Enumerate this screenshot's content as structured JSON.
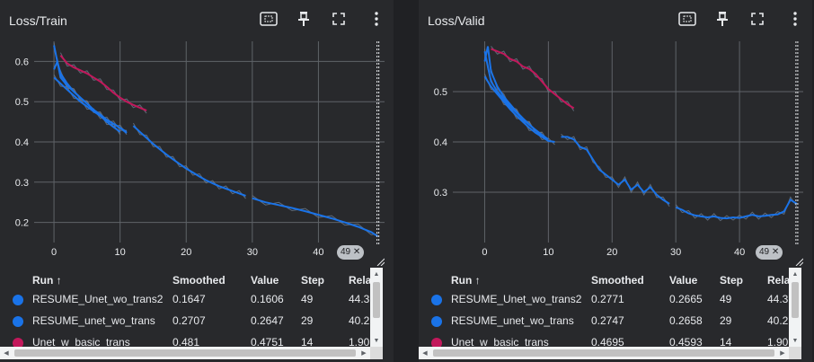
{
  "colors": {
    "background": "#28292c",
    "grid": "#5f6368",
    "text": "#e8eaed",
    "series_blue": "#1a73e8",
    "series_red": "#c2185b",
    "raw_line": "#6b7b8c"
  },
  "icons": [
    "fit-domain-icon",
    "pin-icon",
    "fullscreen-icon",
    "more-vert-icon",
    "resize-grip-icon"
  ],
  "cards": [
    {
      "title": "Loss/Train",
      "step_chip": "49",
      "table": {
        "columns": [
          "Run ↑",
          "Smoothed",
          "Value",
          "Step",
          "Rela"
        ],
        "rows": [
          {
            "run": "RESUME_Unet_wo_trans2",
            "smoothed": "0.1647",
            "value": "0.1606",
            "step": "49",
            "relative": "44.3",
            "color": "#1a73e8"
          },
          {
            "run": "RESUME_unet_wo_trans",
            "smoothed": "0.2707",
            "value": "0.2647",
            "step": "29",
            "relative": "40.2",
            "color": "#1a73e8"
          },
          {
            "run": "Unet_w_basic_trans",
            "smoothed": "0.481",
            "value": "0.4751",
            "step": "14",
            "relative": "1.90",
            "color": "#c2185b"
          }
        ]
      }
    },
    {
      "title": "Loss/Valid",
      "step_chip": "49",
      "table": {
        "columns": [
          "Run ↑",
          "Smoothed",
          "Value",
          "Step",
          "Rela"
        ],
        "rows": [
          {
            "run": "RESUME_Unet_wo_trans2",
            "smoothed": "0.2771",
            "value": "0.2665",
            "step": "49",
            "relative": "44.3",
            "color": "#1a73e8"
          },
          {
            "run": "RESUME_unet_wo_trans",
            "smoothed": "0.2747",
            "value": "0.2658",
            "step": "29",
            "relative": "40.2",
            "color": "#1a73e8"
          },
          {
            "run": "Unet_w_basic_trans",
            "smoothed": "0.4695",
            "value": "0.4593",
            "step": "14",
            "relative": "1.90",
            "color": "#c2185b"
          }
        ]
      }
    }
  ],
  "chart_data": [
    {
      "type": "line",
      "title": "Loss/Train",
      "xlim": [
        -3,
        50
      ],
      "ylim": [
        0.15,
        0.65
      ],
      "xticks": [
        0,
        10,
        20,
        30,
        40
      ],
      "yticks": [
        0.2,
        0.3,
        0.4,
        0.5,
        0.6
      ],
      "grid": true,
      "cursor_step": 49,
      "series": [
        {
          "name": "RESUME_Unet_wo_trans2",
          "color": "#1a73e8",
          "x": [
            0,
            1,
            2,
            3,
            4,
            5,
            6,
            7,
            8,
            9,
            10,
            11
          ],
          "y": [
            0.56,
            0.545,
            0.53,
            0.515,
            0.5,
            0.488,
            0.476,
            0.465,
            0.455,
            0.445,
            0.435,
            0.425
          ]
        },
        {
          "name": "RESUME_Unet_wo_trans2",
          "color": "#1a73e8",
          "x": [
            0,
            0.5,
            1,
            2,
            3,
            4,
            5,
            6,
            7,
            8,
            9,
            10,
            11
          ],
          "y": [
            0.64,
            0.6,
            0.57,
            0.545,
            0.525,
            0.51,
            0.495,
            0.48,
            0.468,
            0.455,
            0.445,
            0.435,
            0.422
          ]
        },
        {
          "name": "RESUME_Unet_wo_trans2",
          "color": "#1a73e8",
          "x": [
            0,
            0.5,
            1,
            2,
            3,
            4,
            5,
            6,
            7,
            8,
            9,
            10
          ],
          "y": [
            0.58,
            0.6,
            0.56,
            0.54,
            0.525,
            0.51,
            0.495,
            0.48,
            0.465,
            0.45,
            0.437,
            0.425
          ]
        },
        {
          "name": "RESUME_unet_wo_trans",
          "color": "#1a73e8",
          "x": [
            12,
            13,
            14,
            15,
            16,
            17,
            18,
            19,
            20,
            21,
            22,
            23,
            24,
            25,
            26,
            27,
            28,
            29
          ],
          "y": [
            0.44,
            0.425,
            0.41,
            0.395,
            0.382,
            0.369,
            0.357,
            0.345,
            0.334,
            0.324,
            0.314,
            0.305,
            0.297,
            0.29,
            0.284,
            0.278,
            0.272,
            0.266
          ]
        },
        {
          "name": "RESUME_Unet_wo_trans2",
          "color": "#1a73e8",
          "x": [
            30,
            32,
            34,
            36,
            38,
            40,
            42,
            44,
            46,
            48,
            49
          ],
          "y": [
            0.26,
            0.25,
            0.243,
            0.236,
            0.228,
            0.219,
            0.21,
            0.2,
            0.189,
            0.176,
            0.165
          ]
        },
        {
          "name": "Unet_w_basic_trans",
          "color": "#c2185b",
          "x": [
            1,
            2,
            3,
            4,
            5,
            6,
            7,
            8,
            9,
            10,
            11,
            12,
            13,
            14
          ],
          "y": [
            0.615,
            0.595,
            0.585,
            0.578,
            0.57,
            0.56,
            0.55,
            0.537,
            0.522,
            0.51,
            0.5,
            0.492,
            0.485,
            0.478
          ]
        }
      ]
    },
    {
      "type": "line",
      "title": "Loss/Valid",
      "xlim": [
        -5,
        50
      ],
      "ylim": [
        0.2,
        0.6
      ],
      "xticks": [
        0,
        10,
        20,
        30,
        40
      ],
      "yticks": [
        0.3,
        0.4,
        0.5
      ],
      "grid": true,
      "cursor_step": 49,
      "series": [
        {
          "name": "RESUME_Unet_wo_trans2",
          "color": "#1a73e8",
          "x": [
            0,
            1,
            2,
            3,
            4,
            5,
            6,
            7,
            8,
            9,
            10,
            11
          ],
          "y": [
            0.53,
            0.51,
            0.495,
            0.48,
            0.465,
            0.452,
            0.44,
            0.428,
            0.418,
            0.41,
            0.402,
            0.4
          ]
        },
        {
          "name": "RESUME_Unet_wo_trans2",
          "color": "#1a73e8",
          "x": [
            0,
            0.5,
            1,
            2,
            3,
            4,
            5,
            6,
            7,
            8,
            9,
            10
          ],
          "y": [
            0.58,
            0.55,
            0.52,
            0.5,
            0.485,
            0.47,
            0.458,
            0.445,
            0.434,
            0.424,
            0.414,
            0.405
          ]
        },
        {
          "name": "RESUME_Unet_wo_trans2",
          "color": "#1a73e8",
          "x": [
            0,
            0.5,
            1,
            2,
            3,
            4,
            5,
            6,
            7,
            8,
            9
          ],
          "y": [
            0.56,
            0.59,
            0.54,
            0.51,
            0.49,
            0.475,
            0.46,
            0.447,
            0.435,
            0.423,
            0.413
          ]
        },
        {
          "name": "RESUME_unet_wo_trans",
          "color": "#1a73e8",
          "x": [
            12,
            13,
            14,
            15,
            16,
            17,
            18,
            19,
            20,
            21,
            22,
            23,
            24,
            25,
            26,
            27,
            28,
            29
          ],
          "y": [
            0.41,
            0.41,
            0.405,
            0.39,
            0.385,
            0.365,
            0.345,
            0.335,
            0.325,
            0.315,
            0.325,
            0.305,
            0.315,
            0.3,
            0.31,
            0.295,
            0.285,
            0.277
          ]
        },
        {
          "name": "RESUME_Unet_wo_trans2",
          "color": "#1a73e8",
          "x": [
            30,
            31,
            32,
            33,
            34,
            35,
            36,
            37,
            38,
            39,
            40,
            41,
            42,
            43,
            44,
            45,
            46,
            47,
            48,
            49
          ],
          "y": [
            0.27,
            0.265,
            0.258,
            0.254,
            0.252,
            0.25,
            0.252,
            0.249,
            0.248,
            0.25,
            0.249,
            0.252,
            0.255,
            0.252,
            0.253,
            0.255,
            0.256,
            0.262,
            0.285,
            0.277
          ]
        },
        {
          "name": "Unet_w_basic_trans",
          "color": "#c2185b",
          "x": [
            1,
            2,
            3,
            4,
            5,
            6,
            7,
            8,
            9,
            10,
            11,
            12,
            13,
            14
          ],
          "y": [
            0.585,
            0.58,
            0.575,
            0.565,
            0.56,
            0.55,
            0.545,
            0.535,
            0.52,
            0.505,
            0.495,
            0.485,
            0.475,
            0.467
          ]
        }
      ]
    }
  ]
}
